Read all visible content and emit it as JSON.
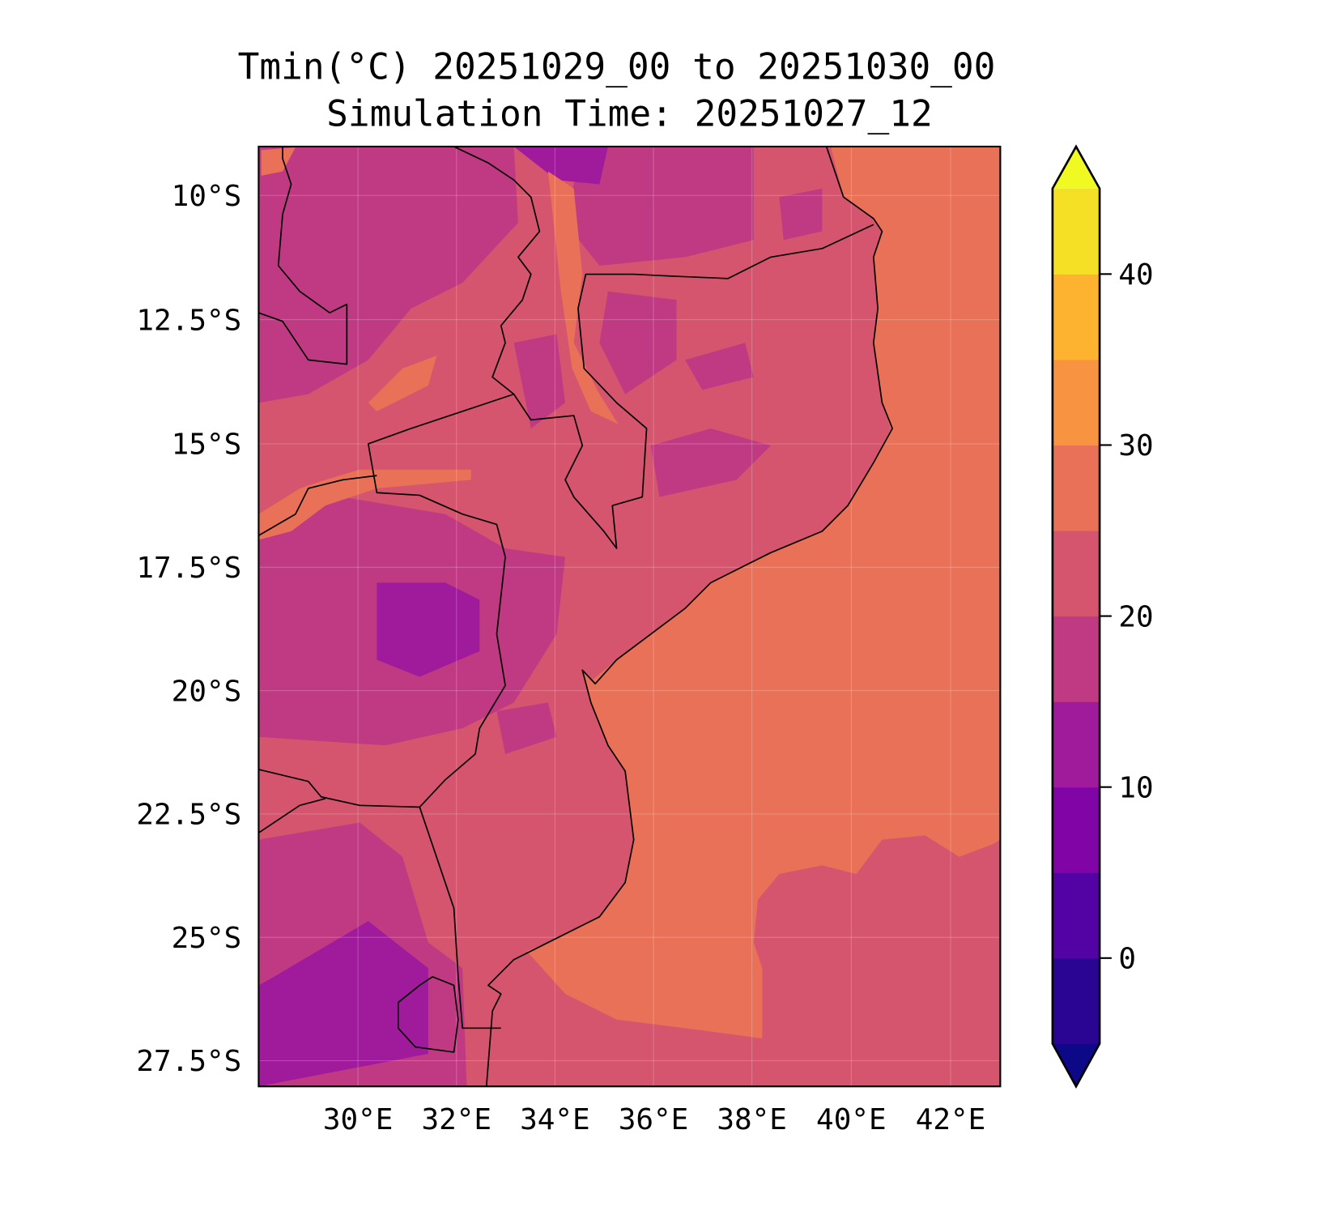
{
  "title": {
    "line1": "Tmin(°C) 20251029_00 to 20251030_00",
    "line2": "Simulation Time: 20251027_12"
  },
  "chart_data": {
    "type": "heatmap",
    "subtype": "filled-contour-map",
    "variable": "Tmin",
    "units": "°C",
    "lon_range": [
      28.3,
      43.0
    ],
    "lat_range": [
      -28.1,
      -9.2
    ],
    "lat_ticks": [
      "10°S",
      "12.5°S",
      "15°S",
      "17.5°S",
      "20°S",
      "22.5°S",
      "25°S",
      "27.5°S"
    ],
    "lon_ticks": [
      "30°E",
      "32°E",
      "34°E",
      "36°E",
      "38°E",
      "40°E",
      "42°E"
    ],
    "colorbar": {
      "levels": [
        -5,
        0,
        5,
        10,
        15,
        20,
        25,
        30,
        35,
        40,
        45
      ],
      "extend": "both",
      "tick_labels": [
        "0",
        "10",
        "20",
        "30",
        "40"
      ],
      "tick_values": [
        0,
        10,
        20,
        30,
        40
      ],
      "colors": [
        "#0d0887",
        "#2a0593",
        "#5302a3",
        "#8104a7",
        "#a01a9c",
        "#c03a83",
        "#d5546e",
        "#e97158",
        "#f89441",
        "#fdb32f",
        "#f6e026",
        "#f0f921"
      ]
    },
    "regions_summary": {
      "ocean_north_central": "25-30",
      "ocean_southeast": "20-25",
      "land_general": "20-25",
      "zimbabwe_zambia_patches": "15-20 / 10-15",
      "lake_malawi_strip": "25-30"
    },
    "grid": true
  }
}
